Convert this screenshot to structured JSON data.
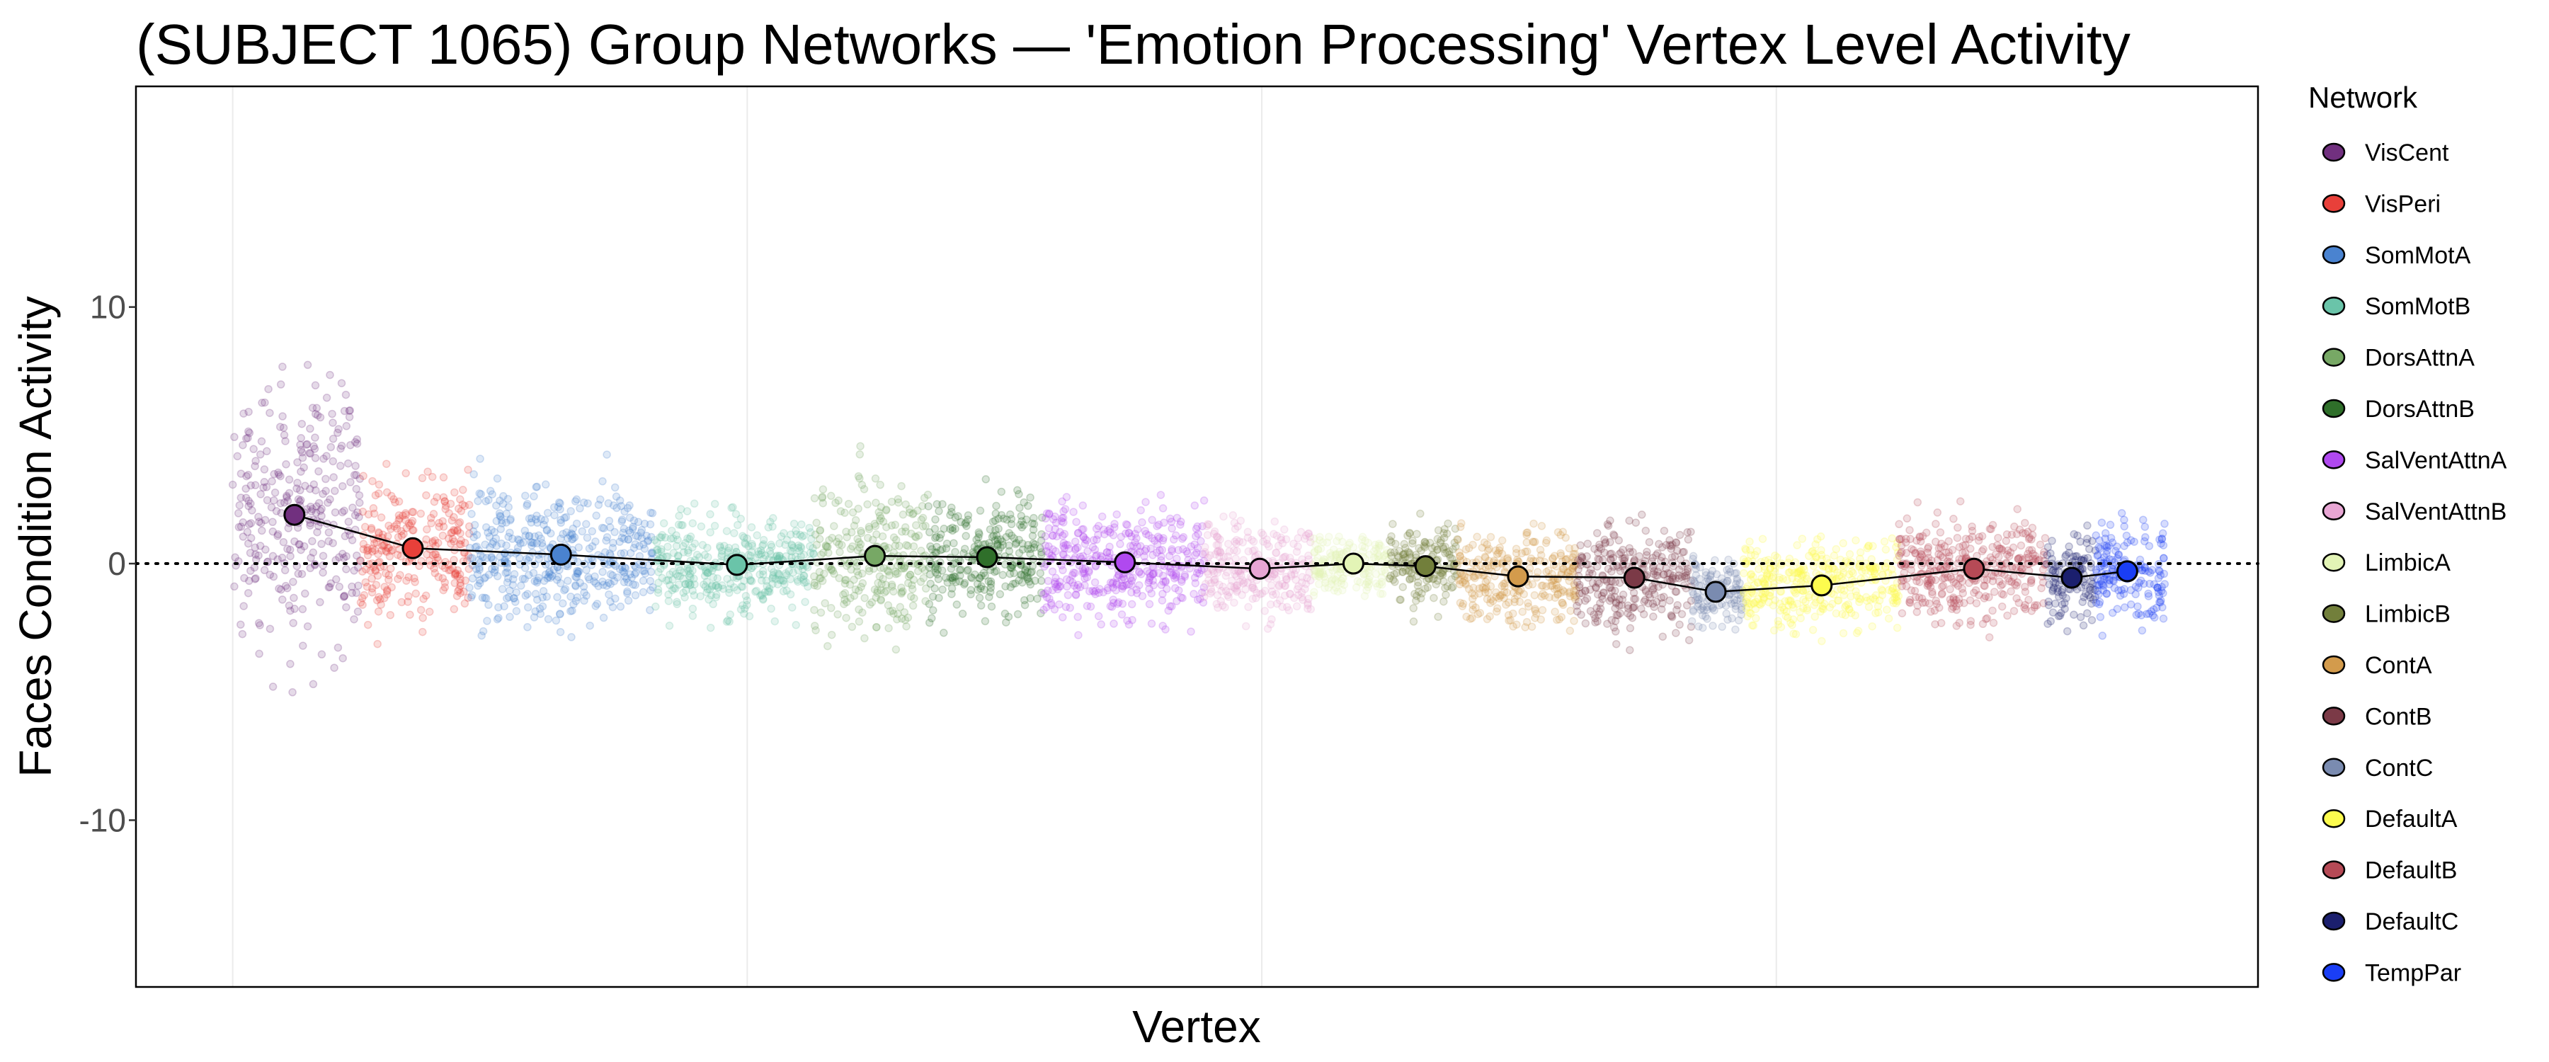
{
  "chart_data": {
    "type": "scatter",
    "title": "(SUBJECT 1065) Group Networks — 'Emotion Processing' Vertex Level Activity",
    "xlabel": "Vertex",
    "ylabel": "Faces Condition Activity",
    "xlim": [
      -940,
      19680
    ],
    "ylim": [
      -16.5,
      18.6
    ],
    "yticks": [
      10,
      0,
      -10
    ],
    "ytick_labels": [
      "10",
      "0",
      "-10"
    ],
    "x_gridlines": [
      0,
      5000,
      10000,
      15000
    ],
    "reference_line_y": 0,
    "legend_title": "Network",
    "legend_position": "right",
    "networks": [
      {
        "name": "VisCent",
        "color": "#71307f",
        "start": 0,
        "end": 1240,
        "mean_x": 600,
        "mean": 1.9,
        "spread": 3.3
      },
      {
        "name": "VisPeri",
        "color": "#e8403a",
        "start": 1240,
        "end": 2300,
        "mean_x": 1750,
        "mean": 0.6,
        "spread": 1.8
      },
      {
        "name": "SomMotA",
        "color": "#4a83d0",
        "start": 2300,
        "end": 4100,
        "mean_x": 3190,
        "mean": 0.35,
        "spread": 1.7
      },
      {
        "name": "SomMotB",
        "color": "#6ac4a9",
        "start": 4100,
        "end": 5650,
        "mean_x": 4900,
        "mean": -0.05,
        "spread": 1.3
      },
      {
        "name": "DorsAttnA",
        "color": "#77a865",
        "start": 5650,
        "end": 6760,
        "mean_x": 6240,
        "mean": 0.3,
        "spread": 2.0
      },
      {
        "name": "DorsAttnB",
        "color": "#2f6f2a",
        "start": 6760,
        "end": 7870,
        "mean_x": 7330,
        "mean": 0.25,
        "spread": 1.5
      },
      {
        "name": "SalVentAttnA",
        "color": "#b049ef",
        "start": 7870,
        "end": 9440,
        "mean_x": 8670,
        "mean": 0.05,
        "spread": 1.5
      },
      {
        "name": "SalVentAttnB",
        "color": "#e8a6d4",
        "start": 9440,
        "end": 10490,
        "mean_x": 9980,
        "mean": -0.2,
        "spread": 1.2
      },
      {
        "name": "LimbicA",
        "color": "#e3f4b6",
        "start": 10490,
        "end": 11240,
        "mean_x": 10890,
        "mean": 0.0,
        "spread": 0.7
      },
      {
        "name": "LimbicB",
        "color": "#727f3b",
        "start": 11240,
        "end": 11900,
        "mean_x": 11590,
        "mean": -0.1,
        "spread": 1.0
      },
      {
        "name": "ContA",
        "color": "#d39b4c",
        "start": 11900,
        "end": 13060,
        "mean_x": 12490,
        "mean": -0.5,
        "spread": 1.3
      },
      {
        "name": "ContB",
        "color": "#7b3a47",
        "start": 13060,
        "end": 14180,
        "mean_x": 13620,
        "mean": -0.55,
        "spread": 1.4
      },
      {
        "name": "ContC",
        "color": "#7a8bb0",
        "start": 14180,
        "end": 14680,
        "mean_x": 14410,
        "mean": -1.1,
        "spread": 1.0
      },
      {
        "name": "DefaultA",
        "color": "#fdfc4e",
        "start": 14680,
        "end": 16190,
        "mean_x": 15440,
        "mean": -0.85,
        "spread": 1.1
      },
      {
        "name": "DefaultB",
        "color": "#b64a56",
        "start": 16190,
        "end": 17620,
        "mean_x": 16920,
        "mean": -0.2,
        "spread": 1.3
      },
      {
        "name": "DefaultC",
        "color": "#1b1f6e",
        "start": 17620,
        "end": 18100,
        "mean_x": 17870,
        "mean": -0.55,
        "spread": 1.2
      },
      {
        "name": "TempPar",
        "color": "#1a3ef5",
        "start": 18100,
        "end": 18780,
        "mean_x": 18410,
        "mean": -0.3,
        "spread": 1.4
      }
    ]
  }
}
